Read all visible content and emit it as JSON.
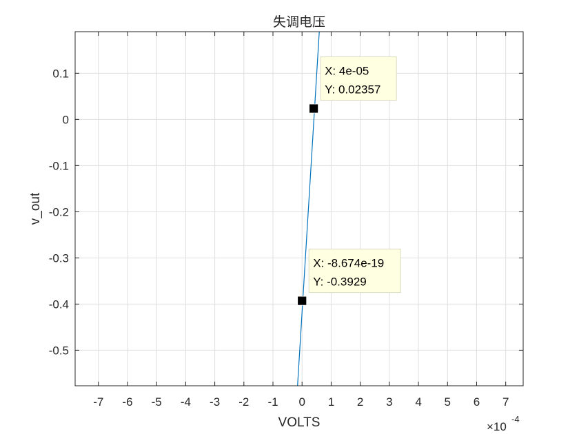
{
  "chart_data": {
    "type": "line",
    "title": "失调电压",
    "xlabel": "VOLTS",
    "ylabel": "v_out",
    "x_exponent_label": "×10",
    "x_exponent_power": "-4",
    "xlim": [
      -0.00078,
      0.00076
    ],
    "ylim": [
      -0.577,
      0.19
    ],
    "x_ticks": [
      -0.0007,
      -0.0006,
      -0.0005,
      -0.0004,
      -0.0003,
      -0.0002,
      -0.0001,
      0,
      0.0001,
      0.0002,
      0.0003,
      0.0004,
      0.0005,
      0.0006,
      0.0007
    ],
    "x_tick_labels": [
      "-7",
      "-6",
      "-5",
      "-4",
      "-3",
      "-2",
      "-1",
      "0",
      "1",
      "2",
      "3",
      "4",
      "5",
      "6",
      "7"
    ],
    "y_ticks": [
      -0.5,
      -0.4,
      -0.3,
      -0.2,
      -0.1,
      0,
      0.1
    ],
    "y_tick_labels": [
      "-0.5",
      "-0.4",
      "-0.3",
      "-0.2",
      "-0.1",
      "0",
      "0.1"
    ],
    "grid": true,
    "series": [
      {
        "x": [
          -1.55e-05,
          5.92e-05
        ],
        "y": [
          -0.577,
          0.19
        ],
        "color": "#0072bd"
      }
    ],
    "datatips": [
      {
        "x_text": "X: 4e-05",
        "y_text": "Y: 0.02357",
        "x": 4e-05,
        "y": 0.02357,
        "placement": "upper-right"
      },
      {
        "x_text": "X: -8.674e-19",
        "y_text": "Y: -0.3929",
        "x": -8.674e-19,
        "y": -0.3929,
        "placement": "upper-right"
      }
    ],
    "colors": {
      "line": "#0072bd",
      "axes": "#262626",
      "grid": "#dfdfdf",
      "datatip_bg": "#ffffe1",
      "datatip_border": "#d9d9c0"
    }
  }
}
